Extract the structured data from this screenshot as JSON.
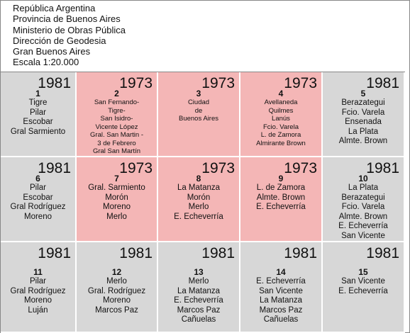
{
  "header": {
    "lines": [
      "República Argentina",
      "Provincia de Buenos Aires",
      "Ministerio de Obras Pública",
      "Dirección de Geodesia",
      "Gran Buenos Aires",
      "Escala 1:20.000"
    ]
  },
  "cells": [
    {
      "number": "1",
      "year": "1981",
      "places": [
        "Tigre",
        "Pilar",
        "Escobar",
        "Gral Sarmiento"
      ]
    },
    {
      "number": "2",
      "year": "1973",
      "places": [
        "San Fernando-",
        "Tigre-",
        "San Isidro-",
        "Vicente López",
        "Gral. San Martin -",
        "3 de Febrero",
        "Gral San Martín"
      ]
    },
    {
      "number": "3",
      "year": "1973",
      "places": [
        "Ciudad",
        "de",
        "Buenos Aires"
      ]
    },
    {
      "number": "4",
      "year": "1973",
      "places": [
        "Avellaneda",
        "Quilmes",
        "Lanús",
        "Fcio. Varela",
        "L. de Zamora",
        "Almirante Brown"
      ]
    },
    {
      "number": "5",
      "year": "1981",
      "places": [
        "Berazategui",
        "Fcio. Varela",
        "Ensenada",
        "La Plata",
        "Almte. Brown"
      ]
    },
    {
      "number": "6",
      "year": "1981",
      "places": [
        "Pilar",
        "Escobar",
        "Gral Rodríguez",
        "Moreno"
      ]
    },
    {
      "number": "7",
      "year": "1973",
      "places": [
        "Gral. Sarmiento",
        "Morón",
        "Moreno",
        "Merlo"
      ]
    },
    {
      "number": "8",
      "year": "1973",
      "places": [
        "La Matanza",
        "Morón",
        "Merlo",
        "E. Echeverría"
      ]
    },
    {
      "number": "9",
      "year": "1973",
      "places": [
        "L. de Zamora",
        "Almte. Brown",
        "E. Echeverría"
      ]
    },
    {
      "number": "10",
      "year": "1981",
      "places": [
        "La Plata",
        "Berazategui",
        "Fcio. Varela",
        "Almte. Brown",
        "E. Echeverría",
        "San Vicente"
      ]
    },
    {
      "number": "11",
      "year": "1981",
      "places": [
        "Pilar",
        "Gral Rodríguez",
        "Moreno",
        "Luján"
      ]
    },
    {
      "number": "12",
      "year": "1981",
      "places": [
        "Merlo",
        "Gral. Rodríguez",
        "Moreno",
        "Marcos Paz"
      ]
    },
    {
      "number": "13",
      "year": "1981",
      "places": [
        "Merlo",
        "La Matanza",
        "E. Echeverría",
        "Marcos Paz",
        "Cañuelas"
      ]
    },
    {
      "number": "14",
      "year": "1981",
      "places": [
        "E. Echeverría",
        "San Vicente",
        "La Matanza",
        "Marcos Paz",
        "Cañuelas"
      ]
    },
    {
      "number": "15",
      "year": "1981",
      "places": [
        "San Vicente",
        "E. Echeverría"
      ]
    }
  ]
}
